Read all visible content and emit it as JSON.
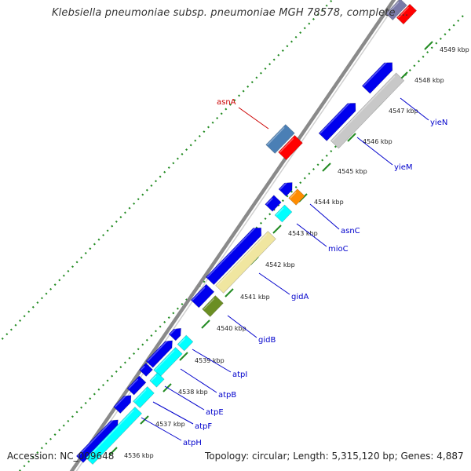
{
  "title": "Klebsiella pneumoniae subsp. pneumoniae MGH 78578, complete ...",
  "footer": {
    "accession": "Accession: NC_009648",
    "summary": "Topology: circular; Length: 5,315,120 bp; Genes: 4,887"
  },
  "ruler": {
    "ticks": [
      {
        "label": "4536 kbp"
      },
      {
        "label": "4537 kbp"
      },
      {
        "label": "4538 kbp"
      },
      {
        "label": "4539 kbp"
      },
      {
        "label": "4540 kbp"
      },
      {
        "label": "4541 kbp"
      },
      {
        "label": "4542 kbp"
      },
      {
        "label": "4543 kbp"
      },
      {
        "label": "4544 kbp"
      },
      {
        "label": "4545 kbp"
      },
      {
        "label": "4546 kbp"
      },
      {
        "label": "4547 kbp"
      },
      {
        "label": "4548 kbp"
      },
      {
        "label": "4549 kbp"
      }
    ]
  },
  "genes": [
    {
      "name": "asnA",
      "color": "#cc0000"
    },
    {
      "name": "yieN",
      "color": "#0000cc"
    },
    {
      "name": "yieM",
      "color": "#0000cc"
    },
    {
      "name": "asnC",
      "color": "#0000cc"
    },
    {
      "name": "mioC",
      "color": "#0000cc"
    },
    {
      "name": "gidA",
      "color": "#0000cc"
    },
    {
      "name": "gidB",
      "color": "#0000cc"
    },
    {
      "name": "atpI",
      "color": "#0000cc"
    },
    {
      "name": "atpB",
      "color": "#0000cc"
    },
    {
      "name": "atpE",
      "color": "#0000cc"
    },
    {
      "name": "atpF",
      "color": "#0000cc"
    },
    {
      "name": "atpH",
      "color": "#0000cc"
    }
  ],
  "colors": {
    "cds": "#0000ee",
    "red_feature": "#ff0000",
    "steelblue_feature": "#4a7fb5",
    "cyan_feature": "#00ffff",
    "grey_feature": "#c8c8c8",
    "khaki_feature": "#f0e6a0",
    "orange_feature": "#ff8c00",
    "olive_feature": "#6b8e23",
    "backbone": "#888888",
    "tick_green": "#228b22",
    "gene_label_blue": "#0000cc",
    "gene_label_red": "#cc0000"
  }
}
